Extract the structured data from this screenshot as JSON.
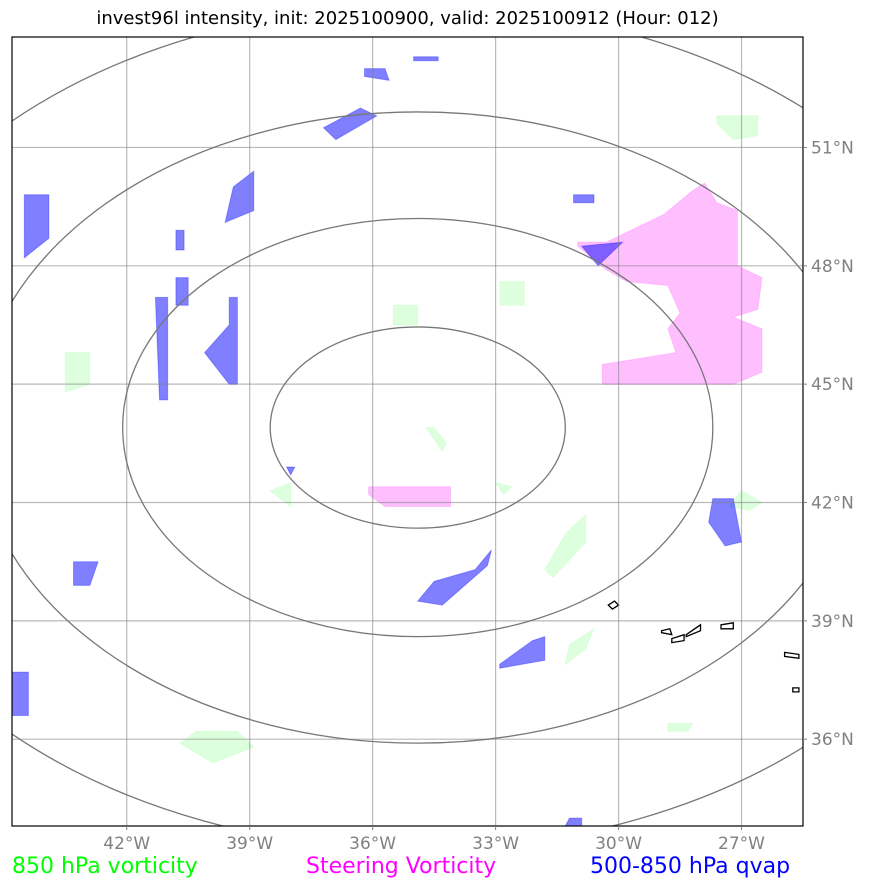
{
  "title": "invest96l intensity, init: 2025100900, valid: 2025100912 (Hour: 012)",
  "colors": {
    "vort850": "#00ff00",
    "steering": "#ff00ff",
    "qvap": "#0000ff",
    "grid": "#808080",
    "tick_label": "#808080"
  },
  "chart_data": {
    "type": "map",
    "projection": "equirectangular",
    "lon_range": [
      -44.8,
      -25.5
    ],
    "lat_range": [
      33.8,
      53.8
    ],
    "x_ticks": [
      "42°W",
      "39°W",
      "36°W",
      "33°W",
      "30°W",
      "27°W"
    ],
    "x_tick_values": [
      -42,
      -39,
      -36,
      -33,
      -30,
      -27
    ],
    "y_ticks": [
      "51°N",
      "48°N",
      "45°N",
      "42°N",
      "39°N",
      "36°N"
    ],
    "y_tick_values": [
      51,
      48,
      45,
      42,
      39,
      36
    ],
    "grid": true,
    "range_rings": {
      "center": [
        -34.9,
        43.9
      ],
      "lon_radii_deg": [
        3.6,
        7.2,
        10.8,
        14.4
      ],
      "lat_radii_deg": [
        2.55,
        5.3,
        8.0,
        10.7
      ]
    },
    "fields": {
      "vort850": {
        "label": "850 hPa vorticity",
        "color": "#00ff00",
        "polygons": [
          [
            [
              -27.6,
              51.8
            ],
            [
              -26.6,
              51.8
            ],
            [
              -26.6,
              51.3
            ],
            [
              -27.2,
              51.2
            ],
            [
              -27.6,
              51.6
            ]
          ],
          [
            [
              -43.5,
              45.8
            ],
            [
              -42.9,
              45.8
            ],
            [
              -42.9,
              45.0
            ],
            [
              -43.5,
              44.8
            ]
          ],
          [
            [
              -35.5,
              47.0
            ],
            [
              -34.9,
              47.0
            ],
            [
              -34.9,
              46.5
            ],
            [
              -35.5,
              46.5
            ]
          ],
          [
            [
              -32.9,
              47.6
            ],
            [
              -32.3,
              47.6
            ],
            [
              -32.3,
              47.0
            ],
            [
              -32.9,
              47.0
            ]
          ],
          [
            [
              -34.7,
              43.9
            ],
            [
              -34.3,
              43.3
            ],
            [
              -34.2,
              43.5
            ],
            [
              -34.5,
              43.9
            ]
          ],
          [
            [
              -33.0,
              42.5
            ],
            [
              -32.6,
              42.4
            ],
            [
              -32.8,
              42.2
            ]
          ],
          [
            [
              -38.5,
              42.3
            ],
            [
              -38.0,
              42.5
            ],
            [
              -38.0,
              41.9
            ]
          ],
          [
            [
              -27.0,
              42.3
            ],
            [
              -26.5,
              42.0
            ],
            [
              -26.8,
              41.8
            ],
            [
              -27.3,
              41.9
            ]
          ],
          [
            [
              -31.3,
              41.2
            ],
            [
              -30.8,
              41.7
            ],
            [
              -30.8,
              41.0
            ],
            [
              -31.6,
              40.1
            ],
            [
              -31.8,
              40.3
            ]
          ],
          [
            [
              -31.2,
              38.4
            ],
            [
              -30.6,
              38.8
            ],
            [
              -30.8,
              38.3
            ],
            [
              -31.3,
              37.9
            ]
          ],
          [
            [
              -40.3,
              36.2
            ],
            [
              -39.3,
              36.2
            ],
            [
              -38.9,
              35.8
            ],
            [
              -39.9,
              35.4
            ],
            [
              -40.7,
              35.9
            ]
          ],
          [
            [
              -28.8,
              36.4
            ],
            [
              -28.2,
              36.4
            ],
            [
              -28.3,
              36.2
            ],
            [
              -28.8,
              36.2
            ]
          ]
        ]
      },
      "steering": {
        "label": "Steering Vorticity",
        "color": "#ff00ff",
        "polygons": [
          [
            [
              -30.3,
              48.6
            ],
            [
              -28.9,
              49.3
            ],
            [
              -28.2,
              49.9
            ],
            [
              -27.9,
              50.1
            ],
            [
              -27.6,
              49.6
            ],
            [
              -27.1,
              49.4
            ],
            [
              -27.1,
              48.0
            ],
            [
              -26.5,
              47.7
            ],
            [
              -26.6,
              46.9
            ],
            [
              -27.2,
              46.7
            ],
            [
              -26.5,
              46.4
            ],
            [
              -26.5,
              45.3
            ],
            [
              -27.2,
              45.0
            ],
            [
              -30.4,
              45.0
            ],
            [
              -30.4,
              45.5
            ],
            [
              -28.6,
              45.8
            ],
            [
              -28.8,
              46.4
            ],
            [
              -28.5,
              46.8
            ],
            [
              -28.8,
              47.5
            ],
            [
              -29.8,
              47.6
            ],
            [
              -30.3,
              47.9
            ],
            [
              -31.0,
              48.5
            ],
            [
              -31.0,
              48.6
            ]
          ],
          [
            [
              -36.1,
              42.4
            ],
            [
              -34.1,
              42.4
            ],
            [
              -34.1,
              41.9
            ],
            [
              -35.7,
              41.9
            ],
            [
              -36.1,
              42.2
            ]
          ]
        ]
      },
      "qvap": {
        "label": "500-850 hPa qvap",
        "color": "#0000ff",
        "polygons": [
          [
            [
              -36.2,
              53.0
            ],
            [
              -35.7,
              53.0
            ],
            [
              -35.6,
              52.7
            ],
            [
              -36.2,
              52.8
            ]
          ],
          [
            [
              -35.0,
              53.3
            ],
            [
              -34.4,
              53.3
            ],
            [
              -34.4,
              53.2
            ],
            [
              -35.0,
              53.2
            ]
          ],
          [
            [
              -37.2,
              51.5
            ],
            [
              -36.3,
              52.0
            ],
            [
              -35.9,
              51.8
            ],
            [
              -36.9,
              51.2
            ]
          ],
          [
            [
              -39.4,
              50.0
            ],
            [
              -38.9,
              50.4
            ],
            [
              -38.9,
              49.4
            ],
            [
              -39.6,
              49.1
            ]
          ],
          [
            [
              -44.5,
              49.8
            ],
            [
              -43.9,
              49.8
            ],
            [
              -43.9,
              48.7
            ],
            [
              -44.5,
              48.2
            ]
          ],
          [
            [
              -31.1,
              49.8
            ],
            [
              -30.6,
              49.8
            ],
            [
              -30.6,
              49.6
            ],
            [
              -31.1,
              49.6
            ]
          ],
          [
            [
              -40.8,
              48.9
            ],
            [
              -40.6,
              48.9
            ],
            [
              -40.6,
              48.4
            ],
            [
              -40.8,
              48.4
            ]
          ],
          [
            [
              -40.8,
              47.7
            ],
            [
              -40.5,
              47.7
            ],
            [
              -40.5,
              47.0
            ],
            [
              -40.8,
              47.0
            ]
          ],
          [
            [
              -30.9,
              48.5
            ],
            [
              -29.9,
              48.6
            ],
            [
              -30.5,
              48.0
            ]
          ],
          [
            [
              -41.3,
              47.2
            ],
            [
              -41.0,
              47.2
            ],
            [
              -41.0,
              44.6
            ],
            [
              -41.2,
              44.6
            ]
          ],
          [
            [
              -39.5,
              47.2
            ],
            [
              -39.3,
              47.2
            ],
            [
              -39.3,
              45.0
            ],
            [
              -39.5,
              45.0
            ],
            [
              -40.1,
              45.8
            ],
            [
              -39.5,
              46.5
            ]
          ],
          [
            [
              -38.1,
              42.9
            ],
            [
              -37.9,
              42.9
            ],
            [
              -38.0,
              42.7
            ]
          ],
          [
            [
              -27.7,
              42.1
            ],
            [
              -27.2,
              42.1
            ],
            [
              -27.0,
              41.0
            ],
            [
              -27.4,
              40.9
            ],
            [
              -27.8,
              41.5
            ]
          ],
          [
            [
              -34.5,
              40.0
            ],
            [
              -33.5,
              40.3
            ],
            [
              -33.1,
              40.8
            ],
            [
              -33.2,
              40.4
            ],
            [
              -34.3,
              39.4
            ],
            [
              -34.9,
              39.5
            ]
          ],
          [
            [
              -43.3,
              40.5
            ],
            [
              -42.7,
              40.5
            ],
            [
              -42.9,
              39.9
            ],
            [
              -43.3,
              39.9
            ]
          ],
          [
            [
              -32.1,
              38.5
            ],
            [
              -31.8,
              38.6
            ],
            [
              -31.8,
              38.0
            ],
            [
              -32.9,
              37.8
            ],
            [
              -32.9,
              37.9
            ]
          ],
          [
            [
              -44.8,
              37.7
            ],
            [
              -44.4,
              37.7
            ],
            [
              -44.4,
              36.6
            ],
            [
              -44.8,
              36.6
            ]
          ],
          [
            [
              -31.2,
              34.0
            ],
            [
              -30.9,
              34.0
            ],
            [
              -30.9,
              33.8
            ],
            [
              -31.3,
              33.8
            ]
          ]
        ]
      }
    },
    "contours": [
      [
        [
          -30.25,
          39.4
        ],
        [
          -30.1,
          39.5
        ],
        [
          -30.0,
          39.4
        ],
        [
          -30.15,
          39.3
        ]
      ],
      [
        [
          -28.95,
          38.75
        ],
        [
          -28.75,
          38.8
        ],
        [
          -28.7,
          38.65
        ],
        [
          -28.95,
          38.7
        ]
      ],
      [
        [
          -28.7,
          38.55
        ],
        [
          -28.4,
          38.65
        ],
        [
          -28.4,
          38.5
        ],
        [
          -28.7,
          38.45
        ]
      ],
      [
        [
          -28.35,
          38.65
        ],
        [
          -28.0,
          38.9
        ],
        [
          -28.0,
          38.75
        ],
        [
          -28.35,
          38.6
        ]
      ],
      [
        [
          -27.5,
          38.9
        ],
        [
          -27.2,
          38.95
        ],
        [
          -27.2,
          38.8
        ],
        [
          -27.5,
          38.8
        ]
      ],
      [
        [
          -25.95,
          38.2
        ],
        [
          -25.6,
          38.15
        ],
        [
          -25.6,
          38.05
        ],
        [
          -25.95,
          38.1
        ]
      ],
      [
        [
          -25.75,
          37.3
        ],
        [
          -25.6,
          37.3
        ],
        [
          -25.6,
          37.2
        ],
        [
          -25.75,
          37.2
        ]
      ]
    ]
  },
  "legend": {
    "vort850": "850 hPa vorticity",
    "steering": "Steering Vorticity",
    "qvap": "500-850 hPa qvap"
  }
}
